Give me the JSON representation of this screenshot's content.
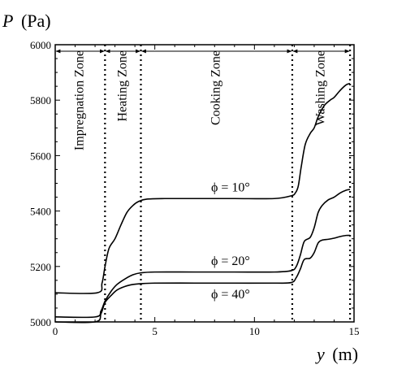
{
  "chart_data": {
    "type": "line",
    "xlabel": "y (m)",
    "ylabel": "P (Pa)",
    "xlabel_var": "y",
    "xlabel_unit": "(m)",
    "ylabel_var": "P",
    "ylabel_unit": "(Pa)",
    "xlim": [
      0,
      15
    ],
    "ylim": [
      5000,
      6000
    ],
    "xticks": [
      0,
      5,
      10,
      15
    ],
    "yticks": [
      5000,
      5200,
      5400,
      5600,
      5800,
      6000
    ],
    "zone_boundaries": [
      2.5,
      4.3,
      11.9,
      14.8
    ],
    "zones": [
      {
        "label": "Impregnation Zone",
        "start": 0,
        "end": 2.5
      },
      {
        "label": "Heating Zone",
        "start": 2.5,
        "end": 4.3
      },
      {
        "label": "Cooking Zone",
        "start": 4.3,
        "end": 11.9
      },
      {
        "label": "Washing Zone",
        "start": 11.9,
        "end": 14.8
      }
    ],
    "series": [
      {
        "name": "φ = 10°",
        "x": [
          0,
          2.1,
          2.35,
          2.5,
          2.7,
          3.0,
          3.3,
          3.6,
          3.9,
          4.2,
          4.6,
          5.5,
          7,
          9,
          11,
          11.85,
          12.05,
          12.2,
          12.35,
          12.55,
          12.8,
          13.0,
          13.2,
          13.5,
          13.8,
          14.0,
          14.3,
          14.6,
          14.8
        ],
        "y": [
          5105,
          5105,
          5140,
          5200,
          5265,
          5300,
          5350,
          5395,
          5420,
          5435,
          5443,
          5445,
          5445,
          5445,
          5445,
          5455,
          5465,
          5490,
          5560,
          5640,
          5680,
          5700,
          5740,
          5780,
          5800,
          5810,
          5835,
          5855,
          5860
        ]
      },
      {
        "name": "φ = 20°",
        "x": [
          0,
          2.0,
          2.3,
          2.5,
          2.8,
          3.1,
          3.5,
          3.9,
          4.3,
          5,
          7,
          9,
          11,
          11.85,
          12.1,
          12.3,
          12.5,
          12.8,
          13.0,
          13.2,
          13.4,
          13.7,
          14.0,
          14.3,
          14.6,
          14.8
        ],
        "y": [
          5018,
          5018,
          5040,
          5075,
          5110,
          5135,
          5155,
          5170,
          5177,
          5180,
          5180,
          5180,
          5180,
          5185,
          5200,
          5240,
          5290,
          5305,
          5340,
          5395,
          5420,
          5440,
          5450,
          5465,
          5475,
          5478
        ]
      },
      {
        "name": "φ = 40°",
        "x": [
          0,
          2.0,
          2.3,
          2.5,
          2.8,
          3.1,
          3.5,
          3.9,
          4.3,
          5,
          7,
          9,
          11,
          11.85,
          12.1,
          12.3,
          12.5,
          12.8,
          13.0,
          13.2,
          13.4,
          13.7,
          14.0,
          14.3,
          14.6,
          14.8
        ],
        "y": [
          5000,
          5000,
          5030,
          5070,
          5095,
          5115,
          5128,
          5135,
          5138,
          5140,
          5140,
          5140,
          5140,
          5142,
          5160,
          5190,
          5225,
          5230,
          5250,
          5285,
          5295,
          5298,
          5302,
          5308,
          5312,
          5312
        ]
      }
    ],
    "curve_labels": [
      {
        "series": 0,
        "text": "ϕ = 10°",
        "x": 8.8,
        "y": 5470
      },
      {
        "series": 1,
        "text": "ϕ = 20°",
        "x": 8.8,
        "y": 5205
      },
      {
        "series": 2,
        "text": "ϕ = 40°",
        "x": 8.8,
        "y": 5085
      }
    ]
  }
}
